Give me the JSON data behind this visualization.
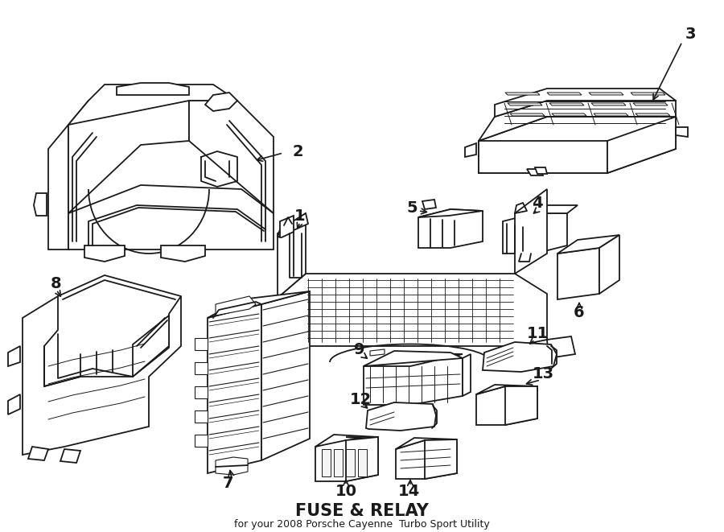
{
  "background_color": "#ffffff",
  "line_color": "#1a1a1a",
  "line_width": 1.0,
  "title": "FUSE & RELAY",
  "subtitle": "for your 2008 Porsche Cayenne  Turbo Sport Utility",
  "fig_width": 9.0,
  "fig_height": 6.61,
  "dpi": 100
}
